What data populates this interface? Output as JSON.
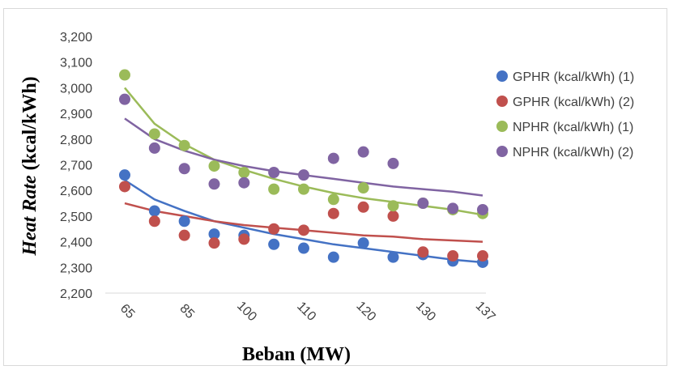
{
  "chart_data": {
    "type": "scatter",
    "title": "",
    "xlabel": "Beban (MW)",
    "ylabel": "Heat Rate (kcal/kWh)",
    "ylabel_italic_part": "Heat Rate",
    "ylabel_plain_part": "(kcal/kWh)",
    "x_tick_labels": [
      "65",
      "85",
      "100",
      "110",
      "120",
      "130",
      "137"
    ],
    "ylim": [
      2200,
      3200
    ],
    "y_ticks": [
      2200,
      2300,
      2400,
      2500,
      2600,
      2700,
      2800,
      2900,
      3000,
      3100,
      3200
    ],
    "y_tick_labels": [
      "2,200",
      "2,300",
      "2,400",
      "2,500",
      "2,600",
      "2,700",
      "2,800",
      "2,900",
      "3,000",
      "3,100",
      "3,200"
    ],
    "grid": false,
    "legend_position": "right",
    "trendline": "logarithmic",
    "series": [
      {
        "name": "GPHR (kcal/kWh) (1)",
        "color": "#4472c4",
        "values": [
          2660,
          2520,
          2480,
          2430,
          2425,
          2390,
          2375,
          2340,
          2395,
          2340,
          2350,
          2325,
          2320
        ]
      },
      {
        "name": "GPHR (kcal/kWh) (2)",
        "color": "#c0504d",
        "values": [
          2615,
          2480,
          2425,
          2395,
          2410,
          2450,
          2445,
          2510,
          2535,
          2500,
          2360,
          2345,
          2345
        ]
      },
      {
        "name": "NPHR (kcal/kWh) (1)",
        "color": "#9bbb59",
        "values": [
          3050,
          2820,
          2775,
          2695,
          2670,
          2605,
          2605,
          2565,
          2610,
          2540,
          2550,
          2525,
          2510
        ]
      },
      {
        "name": "NPHR (kcal/kWh) (2)",
        "color": "#8064a2",
        "values": [
          2955,
          2765,
          2685,
          2625,
          2630,
          2670,
          2660,
          2725,
          2750,
          2705,
          2550,
          2530,
          2525
        ]
      }
    ],
    "trend_values": [
      [
        2640,
        2565,
        2520,
        2480,
        2455,
        2430,
        2410,
        2390,
        2375,
        2360,
        2345,
        2330,
        2320
      ],
      [
        2550,
        2520,
        2500,
        2480,
        2465,
        2455,
        2445,
        2435,
        2425,
        2420,
        2410,
        2405,
        2400
      ],
      [
        3000,
        2860,
        2780,
        2720,
        2680,
        2645,
        2615,
        2590,
        2570,
        2555,
        2540,
        2525,
        2505
      ],
      [
        2880,
        2800,
        2755,
        2720,
        2695,
        2675,
        2660,
        2645,
        2630,
        2615,
        2605,
        2595,
        2580
      ]
    ]
  }
}
